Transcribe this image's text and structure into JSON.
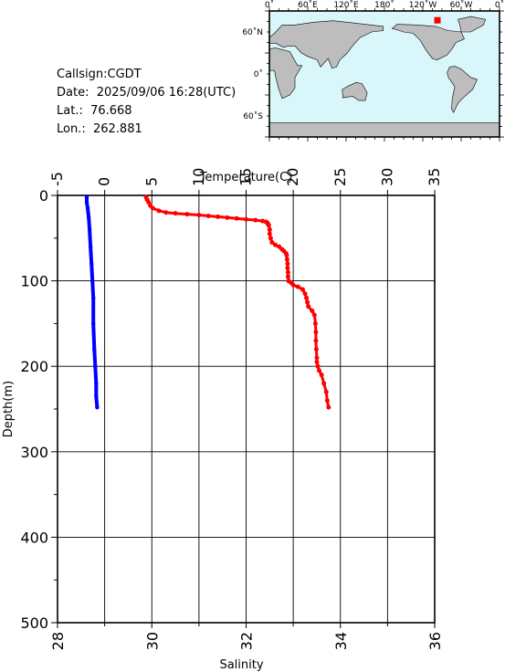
{
  "info": {
    "callsign": "Callsign:CGDT",
    "date": "Date:  2025/09/06 16:28(UTC)",
    "lat": "Lat.:  76.668",
    "lon": "Lon.:  262.881"
  },
  "map": {
    "lon_labels": [
      "0˚",
      "60˚E",
      "120˚E",
      "180˚",
      "120˚W",
      "60˚W",
      "0˚"
    ],
    "lat_labels": [
      "60˚N",
      "0˚",
      "60˚S"
    ],
    "ocean_color": "#d9f7fb",
    "land_color": "#bdbdbd",
    "marker_color": "#ff0000",
    "marker": {
      "lon": 262.881,
      "lat": 76.668
    }
  },
  "chart_data": {
    "type": "line",
    "top_axis_label": "Temperature(C)",
    "bottom_axis_label": "Salinity",
    "ylabel": "Depth(m)",
    "temperature_ticks": [
      "-5",
      "0",
      "5",
      "10",
      "15",
      "20",
      "25",
      "30",
      "35"
    ],
    "salinity_ticks": [
      "28",
      "30",
      "32",
      "34",
      "36"
    ],
    "depth_ticks": [
      "0",
      "100",
      "200",
      "300",
      "400",
      "500"
    ],
    "xlim_temperature": [
      -5,
      35
    ],
    "xlim_salinity": [
      28,
      36
    ],
    "ylim_depth": [
      500,
      0
    ],
    "grid": true,
    "series": [
      {
        "axis": "temperature",
        "color": "#0000ff",
        "style": "line",
        "depth": [
          2,
          8,
          15,
          25,
          40,
          60,
          80,
          100,
          120,
          150,
          180,
          200,
          220,
          235,
          248
        ],
        "values": [
          -1.9,
          -1.9,
          -1.8,
          -1.7,
          -1.6,
          -1.5,
          -1.4,
          -1.3,
          -1.2,
          -1.2,
          -1.1,
          -1.0,
          -0.9,
          -0.9,
          -0.8
        ]
      },
      {
        "axis": "salinity",
        "color": "#ff0000",
        "style": "points",
        "depth": [
          2,
          5,
          8,
          12,
          15,
          18,
          20,
          21,
          22,
          23,
          24,
          25,
          26,
          27,
          28,
          29,
          30,
          31,
          32,
          33,
          34,
          35,
          40,
          45,
          50,
          55,
          58,
          60,
          63,
          65,
          68,
          70,
          75,
          80,
          85,
          90,
          95,
          100,
          102,
          105,
          107,
          110,
          115,
          120,
          125,
          130,
          135,
          140,
          150,
          160,
          170,
          180,
          190,
          195,
          200,
          205,
          210,
          220,
          230,
          240,
          248
        ],
        "values": [
          29.88,
          29.9,
          29.93,
          29.97,
          30.02,
          30.15,
          30.3,
          30.5,
          30.75,
          31.0,
          31.2,
          31.4,
          31.6,
          31.8,
          32.0,
          32.2,
          32.35,
          32.42,
          32.45,
          32.46,
          32.47,
          32.48,
          32.5,
          32.5,
          32.52,
          32.55,
          32.62,
          32.7,
          32.76,
          32.8,
          32.85,
          32.86,
          32.87,
          32.88,
          32.88,
          32.89,
          32.89,
          32.9,
          32.95,
          33.0,
          33.1,
          33.2,
          33.25,
          33.28,
          33.3,
          33.32,
          33.4,
          33.45,
          33.47,
          33.48,
          33.48,
          33.49,
          33.5,
          33.5,
          33.52,
          33.55,
          33.6,
          33.65,
          33.7,
          33.72,
          33.75
        ]
      }
    ]
  }
}
